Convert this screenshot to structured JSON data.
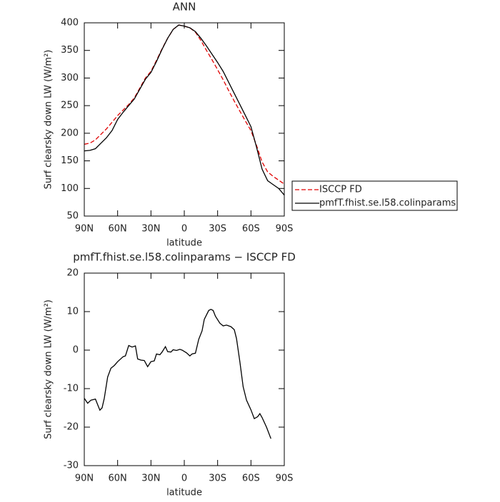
{
  "chart_data": [
    {
      "type": "line",
      "title": "ANN",
      "x_label": "latitude",
      "y_label": "Surf clearsky down LW (W/m²)",
      "x": [
        90,
        85,
        80,
        75,
        70,
        65,
        60,
        55,
        50,
        45,
        40,
        35,
        30,
        25,
        20,
        15,
        10,
        5,
        0,
        -5,
        -10,
        -15,
        -20,
        -25,
        -30,
        -35,
        -40,
        -45,
        -50,
        -55,
        -60,
        -65,
        -70,
        -75,
        -80,
        -85,
        -90
      ],
      "series": [
        {
          "name": "ISCCP FD",
          "color": "#e00000",
          "dash": true,
          "values": [
            180,
            182,
            188,
            198,
            208,
            220,
            232,
            242,
            252,
            264,
            282,
            300,
            312,
            332,
            353,
            372,
            388,
            396,
            394,
            391,
            383,
            368,
            350,
            333,
            315,
            297,
            277,
            258,
            240,
            222,
            205,
            178,
            148,
            130,
            122,
            115,
            108
          ]
        },
        {
          "name": "pmfT.fhist.se.l58.colinparams",
          "color": "#000000",
          "dash": false,
          "values": [
            168,
            169,
            172,
            182,
            192,
            205,
            225,
            238,
            250,
            262,
            280,
            298,
            310,
            330,
            352,
            372,
            388,
            396,
            394,
            391,
            384,
            372,
            358,
            343,
            328,
            312,
            292,
            272,
            252,
            232,
            212,
            175,
            135,
            114,
            107,
            100,
            88
          ]
        }
      ],
      "xlim": [
        90,
        -90
      ],
      "xticks": [
        {
          "value": 90,
          "label": "90N"
        },
        {
          "value": 60,
          "label": "60N"
        },
        {
          "value": 30,
          "label": "30N"
        },
        0,
        {
          "value": -30,
          "label": "30S"
        },
        {
          "value": -60,
          "label": "60S"
        },
        {
          "value": -90,
          "label": "90S"
        }
      ],
      "ylim": [
        50,
        400
      ],
      "yticks": [
        50,
        100,
        150,
        200,
        250,
        300,
        350,
        400
      ],
      "legend": "right"
    },
    {
      "type": "line",
      "title": "pmfT.fhist.se.l58.colinparams − ISCCP FD",
      "x_label": "latitude",
      "y_label": "Surf clearsky down LW (W/m²)",
      "x": [
        90,
        87,
        84,
        80,
        76,
        74,
        72,
        69,
        66,
        63,
        60,
        55,
        53,
        50,
        47,
        44,
        42,
        39,
        36,
        33,
        30,
        27,
        25,
        22,
        20,
        17,
        15,
        12,
        10,
        7,
        4,
        2,
        -2,
        -5,
        -7,
        -10,
        -13,
        -16,
        -18,
        -22,
        -24,
        -26,
        -28,
        -32,
        -35,
        -38,
        -42,
        -45,
        -47,
        -50,
        -53,
        -56,
        -60,
        -63,
        -66,
        -68,
        -70,
        -74,
        -78
      ],
      "series": [
        {
          "name": "pmfT.fhist.se.l58.colinparams",
          "color": "#000000",
          "dash": false,
          "values": [
            -12.5,
            -13.8,
            -13,
            -12.7,
            -15.6,
            -15,
            -12.5,
            -7,
            -4.7,
            -4,
            -3,
            -1.7,
            -1.5,
            1.2,
            0.8,
            1.1,
            -2.3,
            -2.6,
            -2.7,
            -4.3,
            -3,
            -2.8,
            -1,
            -1.2,
            -0.5,
            0.9,
            -0.4,
            -0.5,
            0.1,
            -0.1,
            0.2,
            0,
            -0.7,
            -1.5,
            -1,
            -0.8,
            2.8,
            5,
            8,
            10.3,
            10.6,
            10.3,
            8.8,
            7,
            6.3,
            6.5,
            6.1,
            5.3,
            3,
            -3,
            -9.5,
            -13,
            -15.5,
            -17.8,
            -17.3,
            -16.5,
            -17.5,
            -20,
            -23
          ]
        }
      ],
      "xlim": [
        90,
        -90
      ],
      "xticks": [
        {
          "value": 90,
          "label": "90N"
        },
        {
          "value": 60,
          "label": "60N"
        },
        {
          "value": 30,
          "label": "30N"
        },
        0,
        {
          "value": -30,
          "label": "30S"
        },
        {
          "value": -60,
          "label": "60S"
        },
        {
          "value": -90,
          "label": "90S"
        }
      ],
      "ylim": [
        -30,
        20
      ],
      "yticks": [
        -30,
        -20,
        -10,
        0,
        10,
        20
      ]
    }
  ]
}
